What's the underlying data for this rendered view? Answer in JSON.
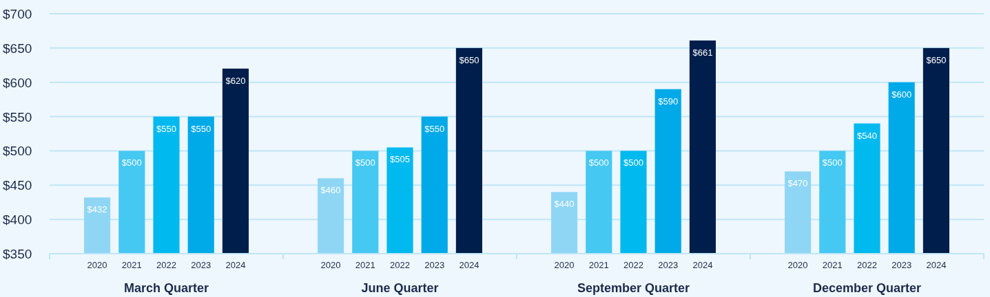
{
  "chart_data": {
    "type": "bar",
    "categories": [
      "March Quarter",
      "June Quarter",
      "September Quarter",
      "December Quarter"
    ],
    "series": [
      {
        "name": "2020",
        "color": "#8fd6f5",
        "values": [
          432,
          460,
          440,
          470
        ],
        "value_labels": [
          "$432",
          "$460",
          "$440",
          "$470"
        ]
      },
      {
        "name": "2021",
        "color": "#45c8f2",
        "values": [
          500,
          500,
          500,
          500
        ],
        "value_labels": [
          "$500",
          "$500",
          "$500",
          "$500"
        ]
      },
      {
        "name": "2022",
        "color": "#00b9ef",
        "values": [
          550,
          505,
          500,
          540
        ],
        "value_labels": [
          "$550",
          "$505",
          "$500",
          "$540"
        ]
      },
      {
        "name": "2023",
        "color": "#00a9e8",
        "values": [
          550,
          550,
          590,
          600
        ],
        "value_labels": [
          "$550",
          "$550",
          "$590",
          "$600"
        ]
      },
      {
        "name": "2024",
        "color": "#001e4b",
        "values": [
          620,
          650,
          661,
          650
        ],
        "value_labels": [
          "$620",
          "$650",
          "$661",
          "$650"
        ]
      }
    ],
    "ylim": [
      350,
      700
    ],
    "yticks": [
      {
        "value": 350,
        "label": "$350"
      },
      {
        "value": 400,
        "label": "$400"
      },
      {
        "value": 450,
        "label": "$450"
      },
      {
        "value": 500,
        "label": "$500"
      },
      {
        "value": 550,
        "label": "$550"
      },
      {
        "value": 600,
        "label": "$600"
      },
      {
        "value": 650,
        "label": "$650"
      },
      {
        "value": 700,
        "label": "$700"
      }
    ],
    "grid": "y"
  }
}
